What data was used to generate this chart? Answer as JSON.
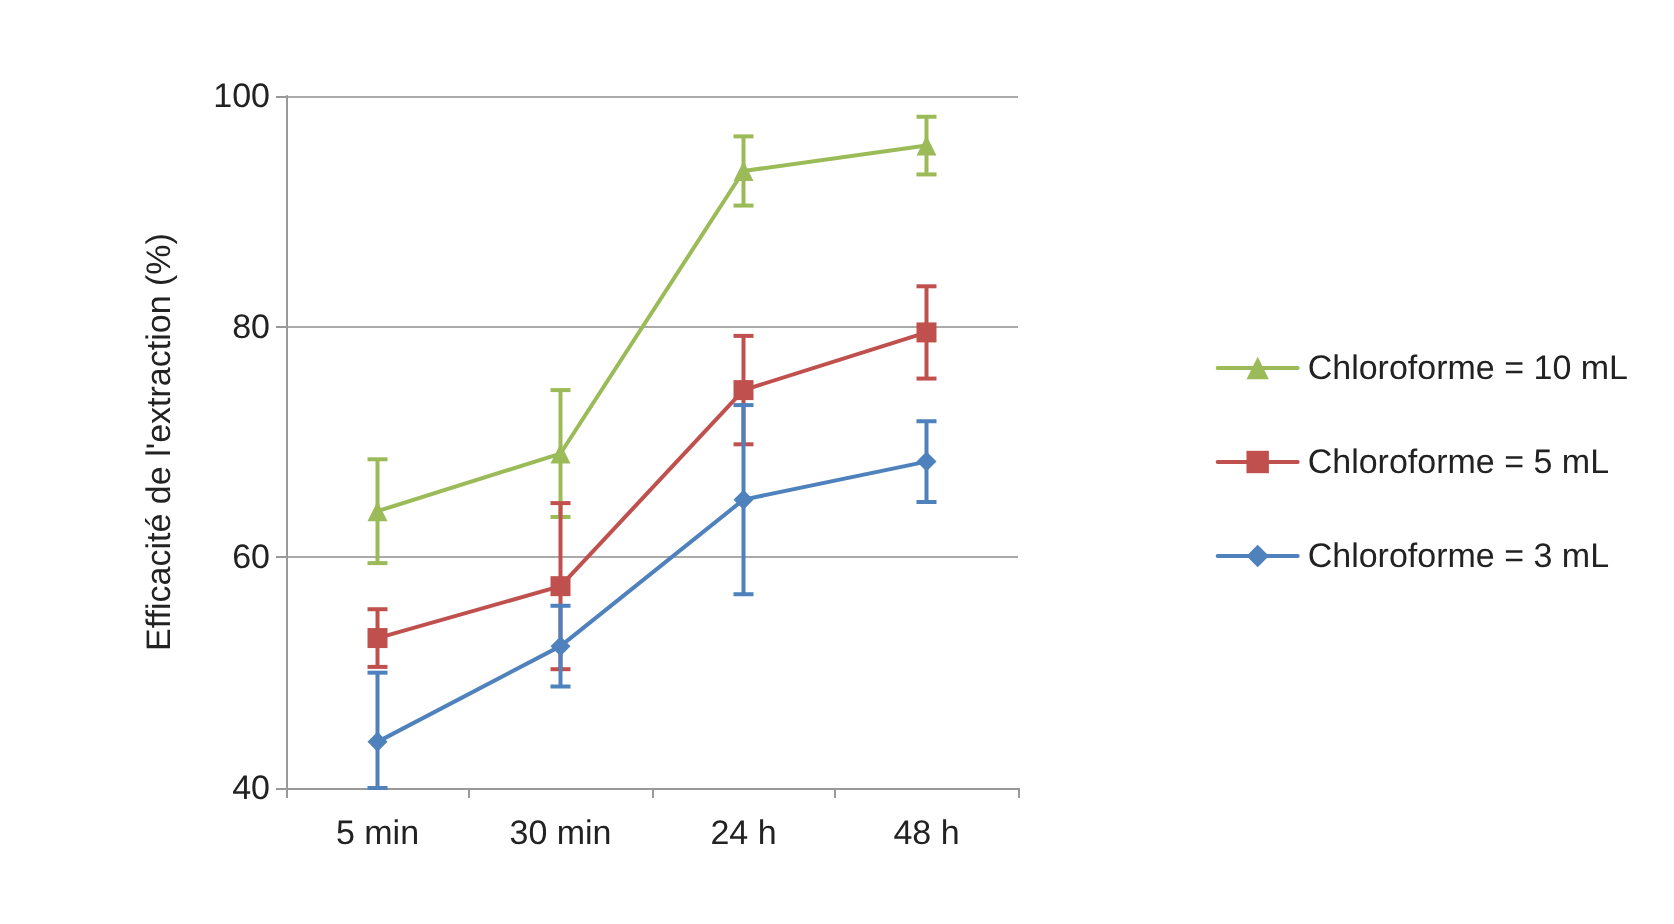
{
  "chart_data": {
    "type": "line",
    "ylabel": "Efficacité de l'extraction (%)",
    "categories": [
      "5 min",
      "30 min",
      "24 h",
      "48 h"
    ],
    "series": [
      {
        "name": "Chloroforme = 10 mL",
        "color": "#9bbb59",
        "marker": "triangle",
        "values": [
          64,
          69,
          93.5,
          95.7
        ],
        "errors": [
          4.5,
          5.5,
          3,
          2.5
        ]
      },
      {
        "name": "Chloroforme = 5 mL",
        "color": "#c0504d",
        "marker": "square",
        "values": [
          53,
          57.5,
          74.5,
          79.5
        ],
        "errors": [
          2.5,
          7.2,
          4.7,
          4
        ]
      },
      {
        "name": "Chloroforme = 3 mL",
        "color": "#4f81bd",
        "marker": "diamond",
        "values": [
          44,
          52.3,
          65,
          68.3
        ],
        "errors": [
          [
            40,
            50
          ],
          3.5,
          8.2,
          3.5
        ]
      }
    ],
    "ylim": [
      40,
      100
    ],
    "yticks": [
      40,
      60,
      80,
      100
    ],
    "grid": "y",
    "legend": "right"
  }
}
